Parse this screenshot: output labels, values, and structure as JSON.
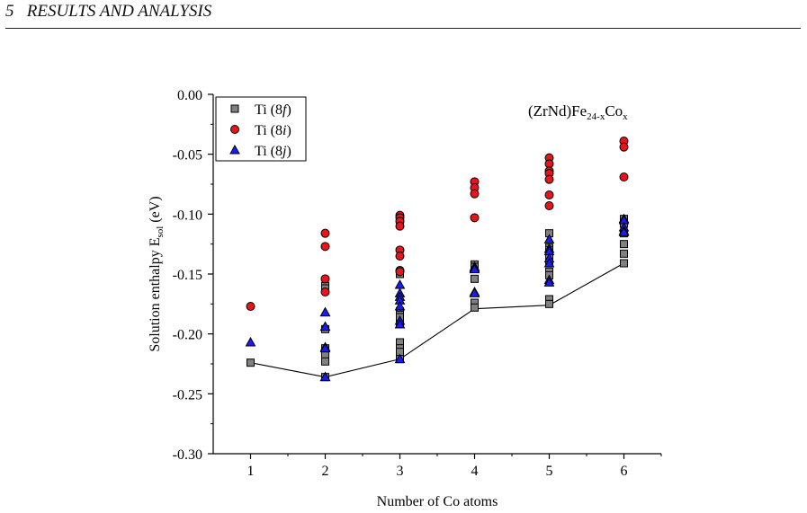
{
  "page_header": {
    "section_number": "5",
    "section_title": "RESULTS AND ANALYSIS"
  },
  "chart_data": {
    "type": "scatter",
    "title": "(ZrNd)Fe24-xCox",
    "title_parts": {
      "base": "(ZrNd)Fe",
      "sub1": "24-x",
      "mid": "Co",
      "sub2": "x"
    },
    "xlabel": "Number of Co atoms",
    "ylabel": "Solution enthalpy E",
    "ylabel_sub": "sol",
    "ylabel_unit": "(eV)",
    "xlim": [
      0.5,
      6.5
    ],
    "ylim": [
      -0.3,
      0.0
    ],
    "xticks": [
      1,
      2,
      3,
      4,
      5,
      6
    ],
    "yticks": [
      0.0,
      -0.05,
      -0.1,
      -0.15,
      -0.2,
      -0.25,
      -0.3
    ],
    "ytick_labels": [
      "0.00",
      "-0.05",
      "-0.10",
      "-0.15",
      "-0.20",
      "-0.25",
      "-0.30"
    ],
    "grid": false,
    "legend_position": "top-left",
    "series": [
      {
        "name": "Ti (8f)",
        "name_base": "Ti (8",
        "name_italic": "f",
        "name_end": ")",
        "marker": "square",
        "color": "#808080",
        "points": [
          [
            1,
            -0.224
          ],
          [
            2,
            -0.16
          ],
          [
            2,
            -0.162
          ],
          [
            2,
            -0.196
          ],
          [
            2,
            -0.212
          ],
          [
            2,
            -0.214
          ],
          [
            2,
            -0.218
          ],
          [
            2,
            -0.223
          ],
          [
            2,
            -0.236
          ],
          [
            3,
            -0.15
          ],
          [
            3,
            -0.181
          ],
          [
            3,
            -0.184
          ],
          [
            3,
            -0.186
          ],
          [
            3,
            -0.192
          ],
          [
            3,
            -0.207
          ],
          [
            3,
            -0.212
          ],
          [
            3,
            -0.215
          ],
          [
            3,
            -0.221
          ],
          [
            4,
            -0.142
          ],
          [
            4,
            -0.144
          ],
          [
            4,
            -0.154
          ],
          [
            4,
            -0.174
          ],
          [
            4,
            -0.178
          ],
          [
            5,
            -0.116
          ],
          [
            5,
            -0.128
          ],
          [
            5,
            -0.13
          ],
          [
            5,
            -0.134
          ],
          [
            5,
            -0.14
          ],
          [
            5,
            -0.148
          ],
          [
            5,
            -0.151
          ],
          [
            5,
            -0.171
          ],
          [
            5,
            -0.175
          ],
          [
            6,
            -0.104
          ],
          [
            6,
            -0.108
          ],
          [
            6,
            -0.116
          ],
          [
            6,
            -0.125
          ],
          [
            6,
            -0.133
          ],
          [
            6,
            -0.141
          ]
        ]
      },
      {
        "name": "Ti (8i)",
        "name_base": "Ti (8",
        "name_italic": "i",
        "name_end": ")",
        "marker": "circle",
        "color": "#e8141c",
        "points": [
          [
            1,
            -0.177
          ],
          [
            2,
            -0.116
          ],
          [
            2,
            -0.127
          ],
          [
            2,
            -0.154
          ],
          [
            2,
            -0.165
          ],
          [
            3,
            -0.101
          ],
          [
            3,
            -0.103
          ],
          [
            3,
            -0.106
          ],
          [
            3,
            -0.11
          ],
          [
            3,
            -0.13
          ],
          [
            3,
            -0.135
          ],
          [
            3,
            -0.147
          ],
          [
            3,
            -0.148
          ],
          [
            4,
            -0.073
          ],
          [
            4,
            -0.078
          ],
          [
            4,
            -0.083
          ],
          [
            4,
            -0.103
          ],
          [
            5,
            -0.053
          ],
          [
            5,
            -0.058
          ],
          [
            5,
            -0.064
          ],
          [
            5,
            -0.066
          ],
          [
            5,
            -0.071
          ],
          [
            5,
            -0.084
          ],
          [
            5,
            -0.093
          ],
          [
            6,
            -0.039
          ],
          [
            6,
            -0.044
          ],
          [
            6,
            -0.069
          ]
        ]
      },
      {
        "name": "Ti (8j)",
        "name_base": "Ti (8",
        "name_italic": "j",
        "name_end": ")",
        "marker": "triangle",
        "color": "#1a1aff",
        "points": [
          [
            1,
            -0.207
          ],
          [
            2,
            -0.182
          ],
          [
            2,
            -0.182
          ],
          [
            2,
            -0.194
          ],
          [
            2,
            -0.194
          ],
          [
            2,
            -0.211
          ],
          [
            2,
            -0.212
          ],
          [
            2,
            -0.236
          ],
          [
            2,
            -0.236
          ],
          [
            3,
            -0.159
          ],
          [
            3,
            -0.166
          ],
          [
            3,
            -0.169
          ],
          [
            3,
            -0.172
          ],
          [
            3,
            -0.177
          ],
          [
            3,
            -0.189
          ],
          [
            3,
            -0.192
          ],
          [
            3,
            -0.221
          ],
          [
            4,
            -0.144
          ],
          [
            4,
            -0.145
          ],
          [
            4,
            -0.146
          ],
          [
            4,
            -0.165
          ],
          [
            4,
            -0.166
          ],
          [
            5,
            -0.121
          ],
          [
            5,
            -0.129
          ],
          [
            5,
            -0.131
          ],
          [
            5,
            -0.137
          ],
          [
            5,
            -0.141
          ],
          [
            5,
            -0.155
          ],
          [
            5,
            -0.157
          ],
          [
            6,
            -0.104
          ],
          [
            6,
            -0.105
          ],
          [
            6,
            -0.111
          ],
          [
            6,
            -0.114
          ],
          [
            6,
            -0.115
          ]
        ]
      }
    ],
    "minimum_line": {
      "x": [
        1,
        2,
        3,
        4,
        5,
        6
      ],
      "y": [
        -0.224,
        -0.236,
        -0.221,
        -0.179,
        -0.176,
        -0.141
      ],
      "color": "#000000"
    }
  }
}
